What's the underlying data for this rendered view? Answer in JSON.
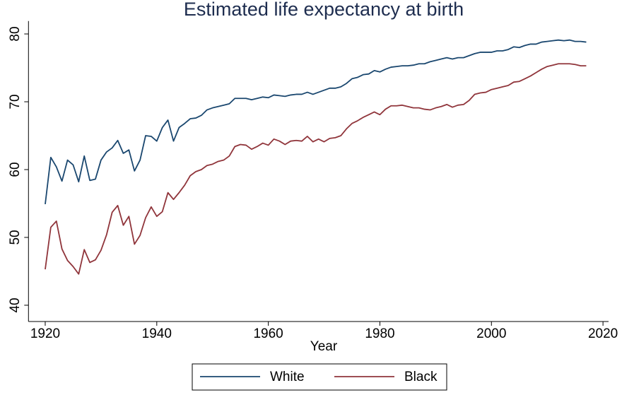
{
  "chart_data": {
    "type": "line",
    "title": "Estimated life expectancy at birth",
    "x_label": "Year",
    "x": [
      1920,
      1921,
      1922,
      1923,
      1924,
      1925,
      1926,
      1927,
      1928,
      1929,
      1930,
      1931,
      1932,
      1933,
      1934,
      1935,
      1936,
      1937,
      1938,
      1939,
      1940,
      1941,
      1942,
      1943,
      1944,
      1945,
      1946,
      1947,
      1948,
      1949,
      1950,
      1951,
      1952,
      1953,
      1954,
      1955,
      1956,
      1957,
      1958,
      1959,
      1960,
      1961,
      1962,
      1963,
      1964,
      1965,
      1966,
      1967,
      1968,
      1969,
      1970,
      1971,
      1972,
      1973,
      1974,
      1975,
      1976,
      1977,
      1978,
      1979,
      1980,
      1981,
      1982,
      1983,
      1984,
      1985,
      1986,
      1987,
      1988,
      1989,
      1990,
      1991,
      1992,
      1993,
      1994,
      1995,
      1996,
      1997,
      1998,
      1999,
      2000,
      2001,
      2002,
      2003,
      2004,
      2005,
      2006,
      2007,
      2008,
      2009,
      2010,
      2011,
      2012,
      2013,
      2014,
      2015,
      2016,
      2017
    ],
    "series": [
      {
        "name": "White",
        "color": "#1a476f",
        "values": [
          54.9,
          61.8,
          60.4,
          58.3,
          61.4,
          60.7,
          58.2,
          62.0,
          58.4,
          58.6,
          61.4,
          62.6,
          63.2,
          64.3,
          62.4,
          62.9,
          59.8,
          61.4,
          65.0,
          64.9,
          64.2,
          66.2,
          67.3,
          64.2,
          66.2,
          66.8,
          67.5,
          67.6,
          68.0,
          68.8,
          69.1,
          69.3,
          69.5,
          69.7,
          70.5,
          70.5,
          70.5,
          70.3,
          70.5,
          70.7,
          70.6,
          71.0,
          70.9,
          70.8,
          71.0,
          71.1,
          71.1,
          71.4,
          71.1,
          71.4,
          71.7,
          72.0,
          72.0,
          72.2,
          72.7,
          73.4,
          73.6,
          74.0,
          74.1,
          74.6,
          74.4,
          74.8,
          75.1,
          75.2,
          75.3,
          75.3,
          75.4,
          75.6,
          75.6,
          75.9,
          76.1,
          76.3,
          76.5,
          76.3,
          76.5,
          76.5,
          76.8,
          77.1,
          77.3,
          77.3,
          77.3,
          77.5,
          77.5,
          77.7,
          78.1,
          78.0,
          78.3,
          78.5,
          78.5,
          78.8,
          78.9,
          79.0,
          79.1,
          79.0,
          79.1,
          78.9,
          78.9,
          78.8
        ]
      },
      {
        "name": "Black",
        "color": "#90353b",
        "values": [
          45.3,
          51.5,
          52.4,
          48.3,
          46.6,
          45.7,
          44.6,
          48.2,
          46.3,
          46.7,
          48.1,
          50.4,
          53.7,
          54.7,
          51.8,
          53.1,
          49.0,
          50.3,
          52.9,
          54.5,
          53.1,
          53.8,
          56.6,
          55.6,
          56.6,
          57.7,
          59.1,
          59.7,
          60.0,
          60.6,
          60.8,
          61.2,
          61.4,
          62.0,
          63.4,
          63.7,
          63.6,
          63.0,
          63.4,
          63.9,
          63.6,
          64.5,
          64.2,
          63.7,
          64.2,
          64.3,
          64.2,
          64.9,
          64.1,
          64.5,
          64.1,
          64.6,
          64.7,
          65.0,
          66.0,
          66.8,
          67.2,
          67.7,
          68.1,
          68.5,
          68.1,
          68.9,
          69.4,
          69.4,
          69.5,
          69.3,
          69.1,
          69.1,
          68.9,
          68.8,
          69.1,
          69.3,
          69.6,
          69.2,
          69.5,
          69.6,
          70.2,
          71.1,
          71.3,
          71.4,
          71.8,
          72.0,
          72.2,
          72.4,
          72.9,
          73.0,
          73.4,
          73.8,
          74.3,
          74.8,
          75.2,
          75.4,
          75.6,
          75.6,
          75.6,
          75.5,
          75.3,
          75.3
        ]
      }
    ],
    "xlim": [
      1917,
      2021
    ],
    "xticks": [
      1920,
      1940,
      1960,
      1980,
      2000,
      2020
    ],
    "ylim": [
      37.6,
      81.9
    ],
    "yticks": [
      40,
      50,
      60,
      70,
      80
    ]
  }
}
